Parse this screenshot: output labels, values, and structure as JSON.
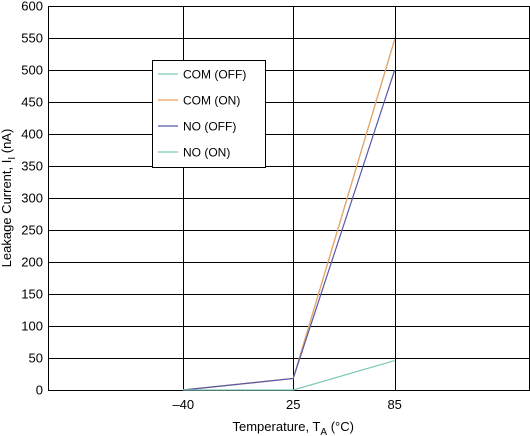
{
  "chart_data": {
    "type": "line",
    "title": "",
    "x": [
      -40,
      25,
      85
    ],
    "x_tick_labels": [
      "–40",
      "25",
      "85"
    ],
    "xlim": [
      -120,
      165
    ],
    "ylim": [
      0,
      600
    ],
    "y_ticks": [
      0,
      50,
      100,
      150,
      200,
      250,
      300,
      350,
      400,
      450,
      500,
      550,
      600
    ],
    "grid": true,
    "legend_position": "upper-left",
    "xlabel": {
      "main": "Temperature, T",
      "sub": "A",
      "unit": " (°C)"
    },
    "ylabel": {
      "main": "Leakage Current, I",
      "sub": "I",
      "unit": " (nA)"
    },
    "series": [
      {
        "name": "COM (OFF)",
        "color": "#7ec8b8",
        "points": [
          [
            -40,
            0
          ],
          [
            25,
            18
          ],
          [
            85,
            548
          ]
        ]
      },
      {
        "name": "COM (ON)",
        "color": "#f0a060",
        "points": [
          [
            -40,
            0
          ],
          [
            25,
            18
          ],
          [
            85,
            548
          ]
        ]
      },
      {
        "name": "NO (OFF)",
        "color": "#5858a8",
        "points": [
          [
            -40,
            0
          ],
          [
            25,
            18
          ],
          [
            85,
            500
          ]
        ]
      },
      {
        "name": "NO (ON)",
        "color": "#7ec8b8",
        "points": [
          [
            -40,
            0
          ],
          [
            25,
            0
          ],
          [
            85,
            46
          ]
        ]
      }
    ]
  }
}
